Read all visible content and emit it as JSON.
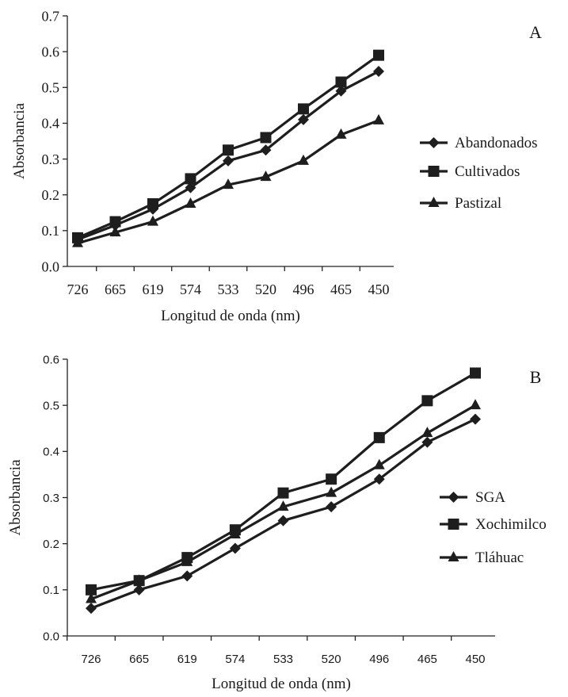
{
  "chart_data": [
    {
      "type": "line",
      "panel_label": "A",
      "xlabel": "Longitud de onda (nm)",
      "ylabel": "Absorbancia",
      "categories": [
        "726",
        "665",
        "619",
        "574",
        "533",
        "520",
        "496",
        "465",
        "450"
      ],
      "ylim": [
        0,
        0.7
      ],
      "yticks": [
        "0.0",
        "0.1",
        "0.2",
        "0.3",
        "0.4",
        "0.5",
        "0.6",
        "0.7"
      ],
      "legend_position": "right",
      "grid": false,
      "series": [
        {
          "name": "Abandonados",
          "marker": "diamond",
          "values": [
            0.075,
            0.115,
            0.16,
            0.22,
            0.295,
            0.325,
            0.41,
            0.49,
            0.545
          ]
        },
        {
          "name": "Cultivados",
          "marker": "square",
          "values": [
            0.08,
            0.125,
            0.175,
            0.245,
            0.325,
            0.36,
            0.44,
            0.515,
            0.59
          ]
        },
        {
          "name": "Pastizal",
          "marker": "triangle",
          "values": [
            0.065,
            0.095,
            0.125,
            0.175,
            0.228,
            0.25,
            0.295,
            0.368,
            0.408
          ]
        }
      ]
    },
    {
      "type": "line",
      "panel_label": "B",
      "xlabel": "Longitud de onda (nm)",
      "ylabel": "Absorbancia",
      "categories": [
        "726",
        "665",
        "619",
        "574",
        "533",
        "520",
        "496",
        "465",
        "450"
      ],
      "ylim": [
        0,
        0.6
      ],
      "yticks": [
        "0.0",
        "0.1",
        "0.2",
        "0.3",
        "0.4",
        "0.5",
        "0.6"
      ],
      "legend_position": "right",
      "grid": false,
      "series": [
        {
          "name": "SGA",
          "marker": "diamond",
          "values": [
            0.06,
            0.1,
            0.13,
            0.19,
            0.25,
            0.28,
            0.34,
            0.42,
            0.47
          ]
        },
        {
          "name": "Xochimilco",
          "marker": "square",
          "values": [
            0.1,
            0.12,
            0.17,
            0.23,
            0.31,
            0.34,
            0.43,
            0.51,
            0.57
          ]
        },
        {
          "name": "Tláhuac",
          "marker": "triangle",
          "values": [
            0.08,
            0.12,
            0.16,
            0.22,
            0.28,
            0.31,
            0.37,
            0.44,
            0.5
          ]
        }
      ]
    }
  ]
}
